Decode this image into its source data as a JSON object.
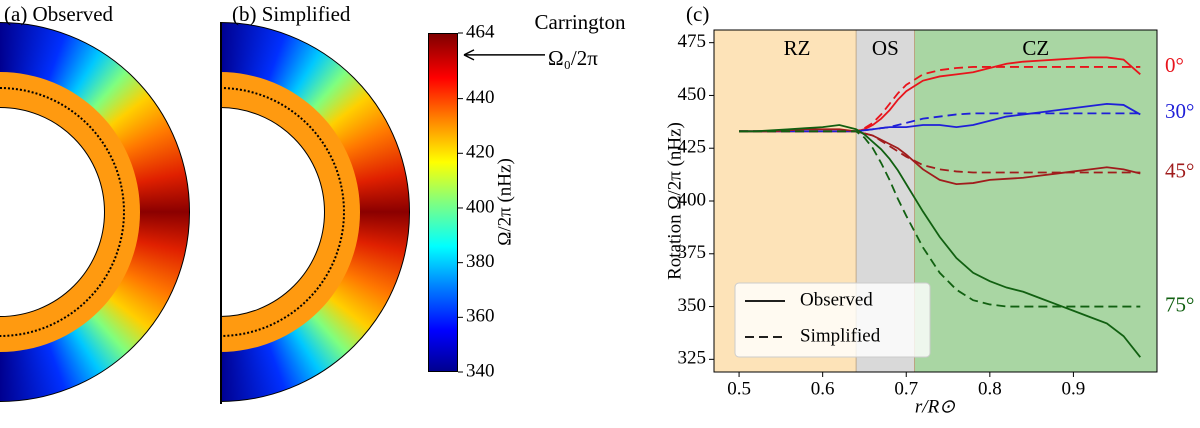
{
  "maps": {
    "panels": [
      "(a) Observed",
      "(b) Simplified"
    ],
    "colorbar": {
      "label": "Ω/2π (nHz)",
      "lim": [
        340,
        464
      ],
      "ticks": [
        340,
        360,
        380,
        400,
        420,
        440,
        464
      ]
    },
    "carrington": {
      "label": "Carrington",
      "symbol": "Ω₀/2π",
      "value": 456
    }
  },
  "chart_data": {
    "type": "line",
    "panel": "(c)",
    "xlabel": "r/R⊙",
    "ylabel": "Rotation Ω/2π (nHz)",
    "xlim": [
      0.47,
      1.0
    ],
    "ylim": [
      319,
      481
    ],
    "xticks": [
      0.5,
      0.6,
      0.7,
      0.8,
      0.9
    ],
    "yticks": [
      325,
      350,
      375,
      400,
      425,
      450,
      475
    ],
    "regions": [
      {
        "label": "RZ",
        "range": [
          0.47,
          0.64
        ],
        "color": "#fde3b8"
      },
      {
        "label": "OS",
        "range": [
          0.64,
          0.71
        ],
        "color": "#d9d9d9"
      },
      {
        "label": "CZ",
        "range": [
          0.71,
          1.0
        ],
        "color": "#a9d6a3"
      }
    ],
    "legend": [
      {
        "label": "Observed",
        "style": "solid"
      },
      {
        "label": "Simplified",
        "style": "dashed"
      }
    ],
    "x": [
      0.5,
      0.52,
      0.54,
      0.56,
      0.58,
      0.6,
      0.62,
      0.64,
      0.65,
      0.66,
      0.67,
      0.68,
      0.69,
      0.7,
      0.72,
      0.74,
      0.76,
      0.78,
      0.8,
      0.82,
      0.84,
      0.86,
      0.88,
      0.9,
      0.92,
      0.94,
      0.96,
      0.98
    ],
    "series": [
      {
        "name": "0°",
        "color": "#e8141c",
        "observed": [
          433,
          433,
          433,
          433,
          433,
          433,
          433,
          433,
          434,
          436,
          439,
          443,
          448,
          452,
          457,
          459,
          460,
          461,
          463,
          465,
          466,
          466.5,
          467,
          467.5,
          468,
          468,
          467,
          460
        ],
        "simplified": [
          433,
          433,
          433,
          433,
          433,
          433,
          433,
          433,
          434.5,
          437,
          441,
          446,
          451,
          455,
          460,
          462,
          463,
          463.5,
          463.5,
          463.5,
          463.5,
          463.5,
          463.5,
          463.5,
          463.5,
          463.5,
          463.5,
          463.5
        ]
      },
      {
        "name": "30°",
        "color": "#1f1fd8",
        "observed": [
          433,
          433,
          433,
          433,
          433,
          433,
          433,
          433,
          433.5,
          434,
          434.5,
          435,
          435,
          435,
          436,
          436,
          435,
          436,
          438,
          440,
          441,
          442,
          443,
          444,
          445,
          446,
          445.5,
          441
        ],
        "simplified": [
          433,
          433,
          433,
          433,
          433,
          433,
          433,
          433,
          433.5,
          434,
          434.5,
          435,
          436,
          437,
          439,
          440,
          441,
          441.5,
          441.5,
          441.5,
          441.5,
          441.5,
          441.5,
          441.5,
          441.5,
          441.5,
          441.5,
          441.5
        ]
      },
      {
        "name": "45°",
        "color": "#a01c1c",
        "observed": [
          433,
          433,
          433,
          433.5,
          434,
          434,
          434,
          433,
          432,
          431,
          429,
          427,
          425,
          422,
          415,
          410,
          408,
          408.5,
          410,
          410.5,
          411,
          412,
          413,
          414,
          415,
          416,
          415,
          413
        ],
        "simplified": [
          433,
          433,
          433,
          433,
          433,
          433,
          433,
          433,
          432,
          431,
          428.5,
          426,
          423.5,
          421,
          417,
          415,
          414,
          413.5,
          413.5,
          413.5,
          413.5,
          413.5,
          413.5,
          413.5,
          413.5,
          413.5,
          413.5,
          413.5
        ]
      },
      {
        "name": "75°",
        "color": "#116011",
        "observed": [
          433,
          433,
          433.5,
          434,
          434.5,
          435,
          436,
          434,
          431.5,
          428,
          424.5,
          420,
          414.5,
          408,
          395,
          383,
          373,
          366,
          362,
          359,
          357,
          354,
          351,
          348,
          345,
          342,
          336,
          326
        ],
        "simplified": [
          433,
          433,
          433,
          433,
          433,
          433,
          433,
          433,
          430,
          425,
          418,
          410,
          401,
          393,
          378,
          366,
          358,
          353,
          351,
          350,
          350,
          350,
          350,
          350,
          350,
          350,
          350,
          350
        ]
      }
    ]
  }
}
